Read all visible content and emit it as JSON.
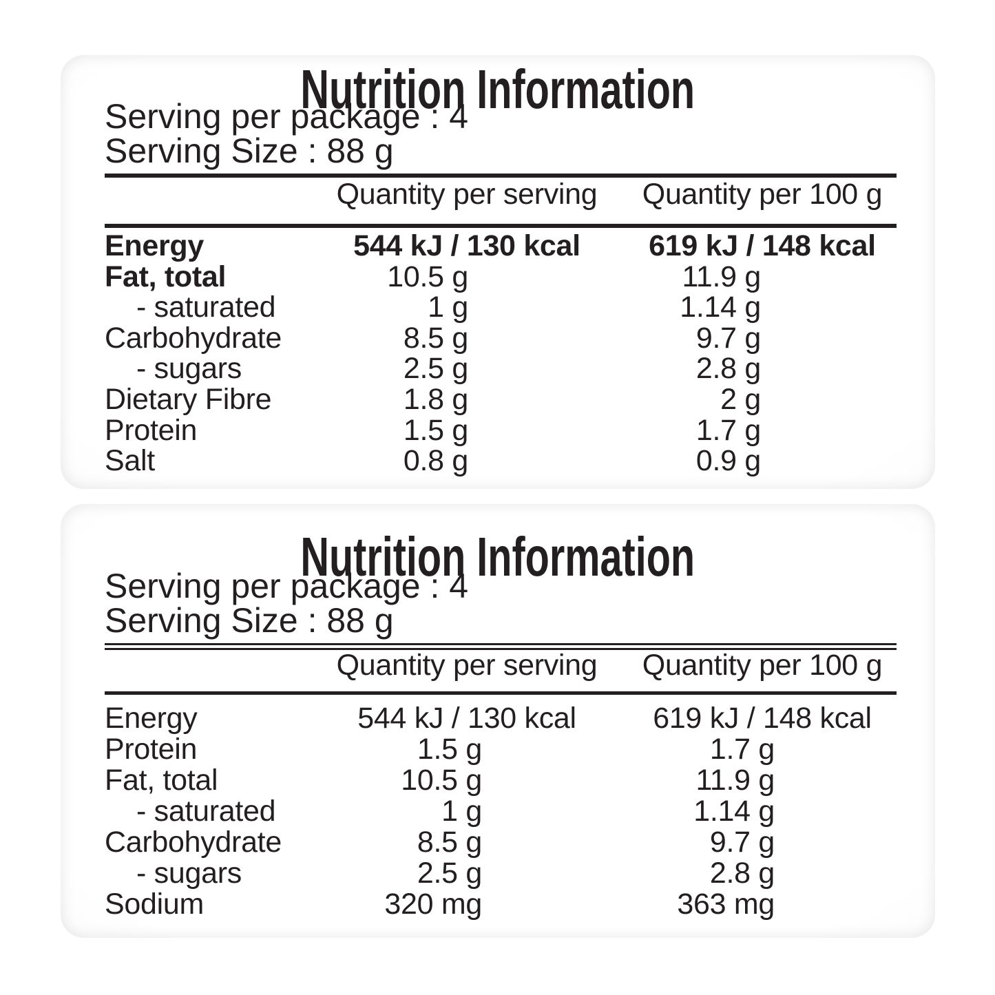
{
  "colors": {
    "text": "#231f20",
    "panel_edge": "#bfbfbf",
    "background": "#ffffff"
  },
  "panels": {
    "top": {
      "title": "Nutrition Information",
      "serving_per_package": "Serving per package : 4",
      "serving_size": "Serving Size : 88 g",
      "col1_header": "Quantity per serving",
      "col2_header": "Quantity per 100 g",
      "rows": [
        {
          "label": "Energy",
          "per_serving": "544 kJ / 130 kcal",
          "per_100g": "619 kJ / 148 kcal"
        },
        {
          "label": "Fat, total",
          "per_serving": "10.5 g",
          "per_100g": "11.9 g"
        },
        {
          "label": "- saturated",
          "per_serving": "1 g",
          "per_100g": "1.14 g"
        },
        {
          "label": "Carbohydrate",
          "per_serving": "8.5 g",
          "per_100g": "9.7 g"
        },
        {
          "label": "- sugars",
          "per_serving": "2.5 g",
          "per_100g": "2.8 g"
        },
        {
          "label": "Dietary Fibre",
          "per_serving": "1.8 g",
          "per_100g": "2 g"
        },
        {
          "label": "Protein",
          "per_serving": "1.5 g",
          "per_100g": "1.7 g"
        },
        {
          "label": "Salt",
          "per_serving": "0.8 g",
          "per_100g": "0.9 g"
        }
      ]
    },
    "bottom": {
      "title": "Nutrition Information",
      "serving_per_package": "Serving per package : 4",
      "serving_size": "Serving Size : 88 g",
      "col1_header": "Quantity per serving",
      "col2_header": "Quantity per 100 g",
      "rows": [
        {
          "label": "Energy",
          "per_serving": "544 kJ / 130 kcal",
          "per_100g": "619 kJ / 148 kcal"
        },
        {
          "label": "Protein",
          "per_serving": "1.5 g",
          "per_100g": "1.7 g"
        },
        {
          "label": "Fat, total",
          "per_serving": "10.5 g",
          "per_100g": "11.9 g"
        },
        {
          "label": "- saturated",
          "per_serving": "1 g",
          "per_100g": "1.14 g"
        },
        {
          "label": "Carbohydrate",
          "per_serving": "8.5 g",
          "per_100g": "9.7 g"
        },
        {
          "label": "- sugars",
          "per_serving": "2.5 g",
          "per_100g": "2.8 g"
        },
        {
          "label": "Sodium",
          "per_serving": "320 mg",
          "per_100g": "363 mg"
        }
      ]
    }
  }
}
